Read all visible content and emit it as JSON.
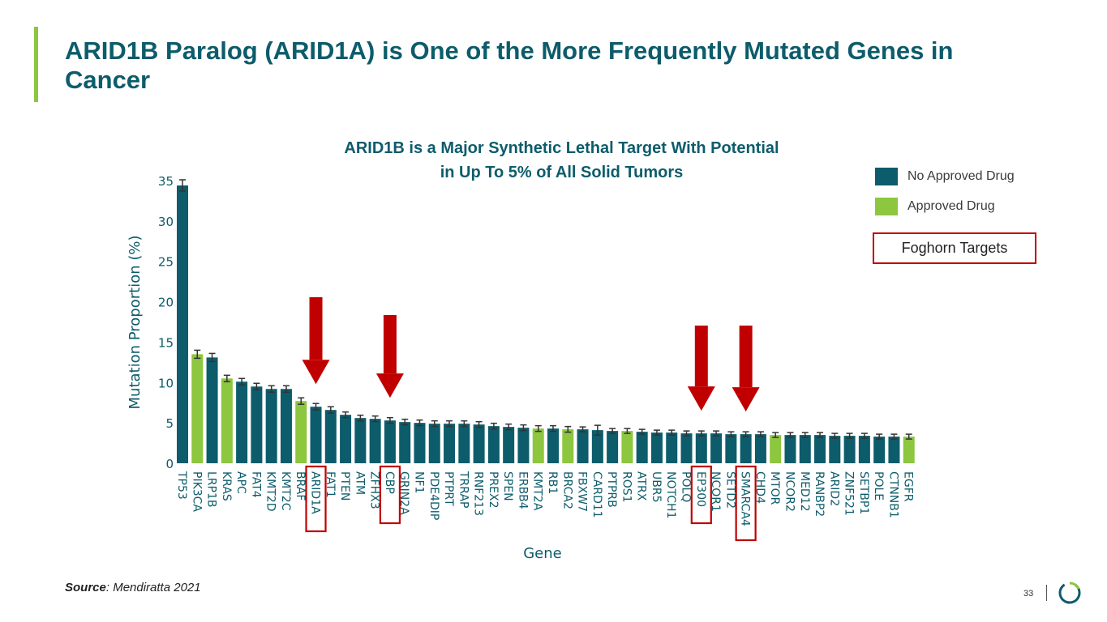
{
  "title": "ARID1B Paralog (ARID1A) is One of the More Frequently Mutated Genes in Cancer",
  "subtitle_line1": "ARID1B is a Major Synthetic Lethal Target With Potential",
  "subtitle_line2": "in Up To 5% of All Solid Tumors",
  "legend": {
    "no_drug": "No Approved Drug",
    "approved": "Approved Drug",
    "foghorn": "Foghorn Targets"
  },
  "source_label": "Source",
  "source_text": ": Mendiratta 2021",
  "page_number": "33",
  "colors": {
    "no_drug": "#0d5c6b",
    "approved": "#8dc63f",
    "highlight": "#c00000",
    "title": "#0d5c6b"
  },
  "chart_data": {
    "type": "bar",
    "xlabel": "Gene",
    "ylabel": "Mutation Proportion (%)",
    "ylim": [
      0,
      35
    ],
    "yticks": [
      0,
      5,
      10,
      15,
      20,
      25,
      30,
      35
    ],
    "categories": [
      "TP53",
      "PIK3CA",
      "LRP1B",
      "KRAS",
      "APC",
      "FAT4",
      "KMT2D",
      "KMT2C",
      "BRAF",
      "ARID1A",
      "FAT1",
      "PTEN",
      "ATM",
      "ZFHX3",
      "CBP",
      "GRIN2A",
      "NF1",
      "PDE4DIP",
      "PTPRT",
      "TRRAP",
      "RNF213",
      "PREX2",
      "SPEN",
      "ERBB4",
      "KMT2A",
      "RB1",
      "BRCA2",
      "FBXW7",
      "CARD11",
      "PTPRB",
      "ROS1",
      "ATRX",
      "UBR5",
      "NOTCH1",
      "POLQ",
      "EP300",
      "NCOR1",
      "SETD2",
      "SMARCA4",
      "CHD4",
      "MTOR",
      "NCOR2",
      "MED12",
      "RANBP2",
      "ARID2",
      "ZNF521",
      "SETBP1",
      "POLE",
      "CTNNB1",
      "EGFR"
    ],
    "values": [
      34.4,
      13.5,
      13.1,
      10.5,
      10.1,
      9.5,
      9.2,
      9.2,
      7.7,
      7.0,
      6.6,
      6.0,
      5.6,
      5.5,
      5.3,
      5.1,
      5.0,
      4.9,
      4.9,
      4.9,
      4.8,
      4.6,
      4.5,
      4.4,
      4.3,
      4.3,
      4.2,
      4.2,
      4.1,
      4.0,
      4.0,
      3.9,
      3.8,
      3.8,
      3.7,
      3.7,
      3.7,
      3.6,
      3.6,
      3.6,
      3.5,
      3.5,
      3.5,
      3.5,
      3.4,
      3.4,
      3.4,
      3.3,
      3.3,
      3.3
    ],
    "errors": [
      0.7,
      0.5,
      0.5,
      0.4,
      0.4,
      0.4,
      0.4,
      0.4,
      0.4,
      0.4,
      0.4,
      0.35,
      0.35,
      0.35,
      0.35,
      0.35,
      0.35,
      0.35,
      0.35,
      0.35,
      0.35,
      0.35,
      0.35,
      0.35,
      0.35,
      0.35,
      0.35,
      0.3,
      0.6,
      0.3,
      0.3,
      0.3,
      0.3,
      0.3,
      0.3,
      0.3,
      0.3,
      0.3,
      0.3,
      0.3,
      0.3,
      0.3,
      0.3,
      0.3,
      0.3,
      0.3,
      0.3,
      0.3,
      0.3,
      0.3
    ],
    "approved_drug": [
      "PIK3CA",
      "KRAS",
      "BRAF",
      "KMT2A",
      "BRCA2",
      "ROS1",
      "MTOR",
      "EGFR"
    ],
    "foghorn_targets": [
      "ARID1A",
      "CBP",
      "EP300",
      "SMARCA4"
    ]
  }
}
